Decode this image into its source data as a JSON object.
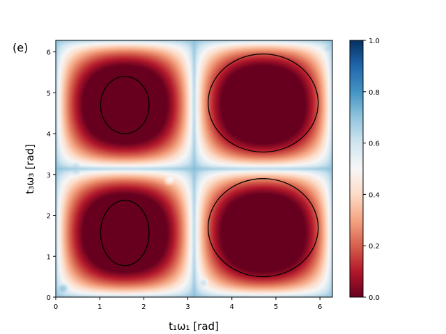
{
  "chart_data": {
    "type": "heatmap",
    "panel_label": "(e)",
    "xlabel": "t₁ω₁ [rad]",
    "ylabel": "t₃ω₃ [rad]",
    "xlim": [
      0,
      6.283
    ],
    "ylim": [
      0,
      6.283
    ],
    "x_ticks": [
      "0",
      "1",
      "2",
      "3",
      "4",
      "5",
      "6"
    ],
    "y_ticks": [
      "0",
      "1",
      "2",
      "3",
      "4",
      "5",
      "6"
    ],
    "colorbar": {
      "colormap": "RdBu",
      "range": [
        0.0,
        1.0
      ],
      "ticks": [
        "0.0",
        "0.2",
        "0.4",
        "0.6",
        "0.8",
        "1.0"
      ]
    },
    "contour_levels": [
      0.05,
      0.1,
      0.2,
      0.3,
      0.4,
      0.6,
      0.7,
      0.8,
      0.9
    ],
    "field_samples": [
      {
        "x": 1.57,
        "y": 1.57,
        "value": 0.0
      },
      {
        "x": 1.57,
        "y": 4.71,
        "value": 0.0
      },
      {
        "x": 4.71,
        "y": 1.57,
        "value": 0.0
      },
      {
        "x": 4.71,
        "y": 4.71,
        "value": 0.0
      },
      {
        "x": 0.45,
        "y": 3.14,
        "value": 0.85
      },
      {
        "x": 2.6,
        "y": 2.9,
        "value": 0.75
      },
      {
        "x": 3.35,
        "y": 0.35,
        "value": 0.85
      },
      {
        "x": 0.15,
        "y": 0.2,
        "value": 0.9
      },
      {
        "x": 6.2,
        "y": 6.1,
        "value": 0.9
      }
    ],
    "grid": false
  }
}
